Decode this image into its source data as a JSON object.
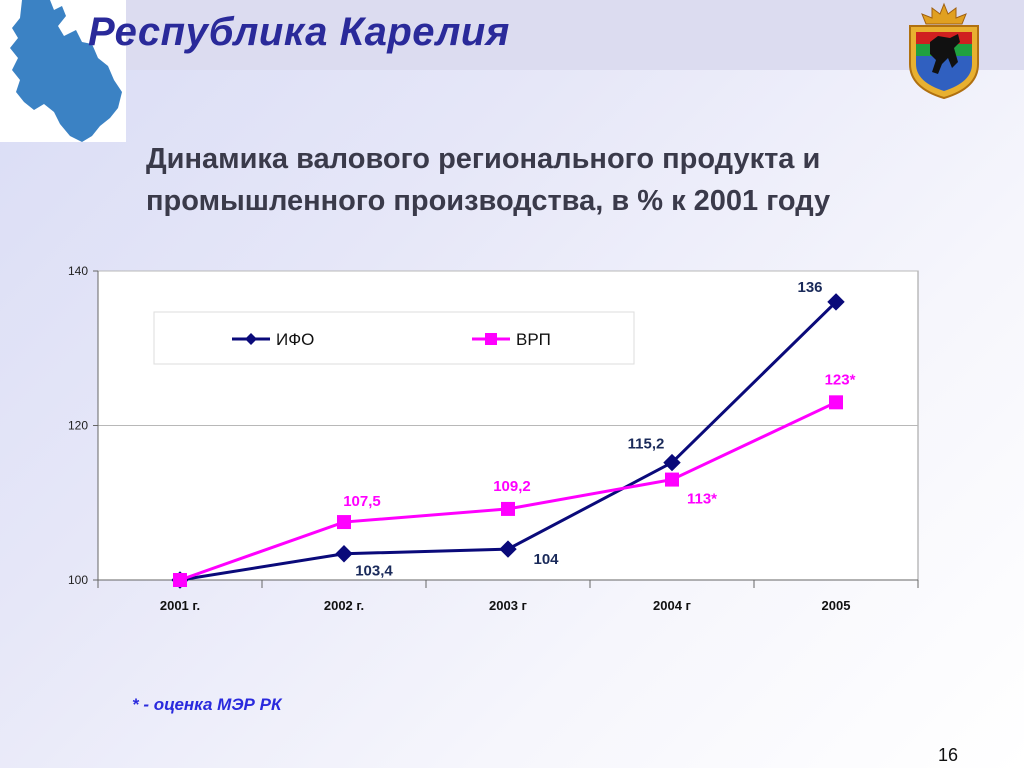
{
  "header": {
    "title": "Республика Карелия"
  },
  "subtitle": {
    "line1": "Динамика валового регионального продукта  и",
    "line2": "промышленного производства, в % к 2001 году"
  },
  "chart_data": {
    "type": "line",
    "categories": [
      "2001 г.",
      "2002 г.",
      "2003 г",
      "2004 г",
      "2005"
    ],
    "series": [
      {
        "name": "ИФО",
        "values": [
          100,
          103.4,
          104,
          115.2,
          136
        ],
        "labels": [
          "",
          "103,4",
          "104",
          "115,2",
          "136"
        ],
        "color": "#0a0a7a",
        "marker": "diamond"
      },
      {
        "name": "ВРП",
        "values": [
          100,
          107.5,
          109.2,
          113,
          123
        ],
        "labels": [
          "",
          "107,5",
          "109,2",
          "113*",
          "123*"
        ],
        "color": "#ff00ff",
        "marker": "square"
      }
    ],
    "ylim": [
      100,
      140
    ],
    "yticks": [
      "100",
      "120",
      "140"
    ],
    "grid": true,
    "legend": "top-left"
  },
  "footnote": "* - оценка МЭР РК",
  "page_number": "16",
  "colors": {
    "title": "#2a2a9a",
    "ifo": "#0a0a7a",
    "vrp": "#ff00ff",
    "footnote": "#2a2add"
  }
}
